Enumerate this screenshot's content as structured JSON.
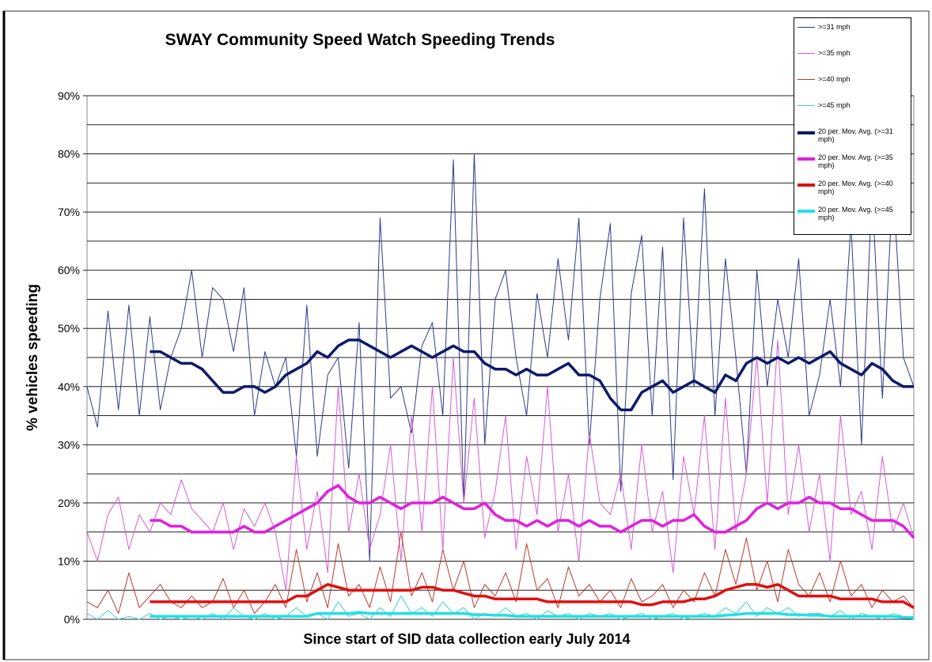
{
  "chart_data": {
    "type": "line",
    "title": "SWAY Community Speed Watch Speeding Trends",
    "ylabel": "% vehicles speeding",
    "xlabel": "Since start of SID data collection early July 2014",
    "ylim": [
      0,
      90
    ],
    "yticks": [
      {
        "value": 0,
        "label": "0%"
      },
      {
        "value": 10,
        "label": "10%"
      },
      {
        "value": 20,
        "label": "20%"
      },
      {
        "value": 30,
        "label": "30%"
      },
      {
        "value": 40,
        "label": "40%"
      },
      {
        "value": 50,
        "label": "50%"
      },
      {
        "value": 60,
        "label": "60%"
      },
      {
        "value": 70,
        "label": "70%"
      },
      {
        "value": 80,
        "label": "80%"
      },
      {
        "value": 90,
        "label": "90%"
      }
    ],
    "minor_grid": [
      5,
      15,
      25,
      35,
      45,
      55,
      65,
      75,
      85
    ],
    "grid": true,
    "legend": "top-right",
    "series": [
      {
        "name": ">=31 mph",
        "color": "#2e3a8c",
        "line_width": 1,
        "values": [
          40,
          33,
          53,
          36,
          54,
          35,
          52,
          36,
          45,
          50,
          60,
          45,
          57,
          55,
          46,
          57,
          35,
          46,
          40,
          45,
          28,
          54,
          28,
          42,
          45,
          26,
          51,
          10,
          69,
          38,
          40,
          32,
          47,
          51,
          35,
          79,
          20,
          80,
          30,
          55,
          60,
          45,
          35,
          56,
          45,
          62,
          48,
          69,
          30,
          55,
          68,
          22,
          56,
          66,
          35,
          64,
          24,
          69,
          40,
          74,
          35,
          62,
          45,
          25,
          60,
          40,
          55,
          45,
          62,
          35,
          42,
          55,
          40,
          68,
          30,
          74,
          38,
          75,
          45,
          40
        ]
      },
      {
        "name": ">=35 mph",
        "color": "#d65cd6",
        "line_width": 1,
        "values": [
          15,
          10,
          18,
          21,
          12,
          18,
          15,
          20,
          18,
          24,
          19,
          17,
          15,
          20,
          12,
          19,
          16,
          20,
          15,
          5,
          28,
          12,
          22,
          8,
          40,
          15,
          25,
          12,
          18,
          30,
          10,
          35,
          15,
          40,
          12,
          45,
          20,
          38,
          14,
          22,
          35,
          12,
          28,
          18,
          40,
          15,
          25,
          10,
          32,
          20,
          18,
          25,
          12,
          30,
          15,
          22,
          8,
          28,
          18,
          35,
          12,
          38,
          15,
          25,
          45,
          20,
          48,
          18,
          30,
          15,
          25,
          10,
          35,
          18,
          22,
          12,
          28,
          15,
          20,
          14
        ]
      },
      {
        "name": ">=40 mph",
        "color": "#c0392b",
        "line_width": 1,
        "values": [
          3,
          2,
          5,
          1,
          8,
          2,
          4,
          6,
          3,
          2,
          4,
          2,
          3,
          7,
          2,
          5,
          1,
          3,
          6,
          2,
          12,
          3,
          8,
          2,
          13,
          4,
          6,
          2,
          9,
          3,
          15,
          4,
          8,
          3,
          12,
          5,
          10,
          2,
          6,
          4,
          8,
          3,
          13,
          5,
          7,
          2,
          9,
          4,
          6,
          3,
          5,
          2,
          7,
          3,
          4,
          6,
          2,
          5,
          3,
          8,
          4,
          12,
          6,
          14,
          5,
          10,
          3,
          12,
          6,
          4,
          8,
          3,
          10,
          4,
          6,
          2,
          5,
          3,
          4,
          2
        ]
      },
      {
        "name": ">=45 mph",
        "color": "#40d0d0",
        "line_width": 1,
        "values": [
          1,
          0,
          1.5,
          0,
          0.5,
          0,
          1,
          0,
          0.5,
          0,
          0.5,
          0,
          1,
          0,
          2,
          0.5,
          0,
          1,
          0,
          0.5,
          2,
          0.5,
          1,
          0,
          3,
          0.5,
          1,
          0,
          2,
          0.5,
          4,
          1,
          2,
          0.5,
          3,
          1,
          2,
          0,
          1,
          0.5,
          2,
          0.5,
          1,
          0,
          1.5,
          0.5,
          1,
          0,
          1,
          0.5,
          1,
          0,
          0.5,
          1,
          0,
          0.5,
          1,
          0,
          0.5,
          1,
          0.5,
          2,
          1,
          3,
          0.5,
          2,
          1,
          2,
          0.5,
          1,
          1,
          0.5,
          1.5,
          0,
          1,
          0.5,
          0,
          1,
          0.5,
          0
        ]
      },
      {
        "name": "20 per. Mov. Avg. (>=31 mph)",
        "color": "#0d1a6b",
        "line_width": 3.5,
        "values": [
          null,
          null,
          null,
          null,
          null,
          null,
          46,
          46,
          45,
          44,
          44,
          43,
          41,
          39,
          39,
          40,
          40,
          39,
          40,
          42,
          43,
          44,
          46,
          45,
          47,
          48,
          48,
          47,
          46,
          45,
          46,
          47,
          46,
          45,
          46,
          47,
          46,
          46,
          44,
          43,
          43,
          42,
          43,
          42,
          42,
          43,
          44,
          42,
          42,
          41,
          38,
          36,
          36,
          39,
          40,
          41,
          39,
          40,
          41,
          40,
          39,
          42,
          41,
          44,
          45,
          44,
          45,
          44,
          45,
          44,
          45,
          46,
          44,
          43,
          42,
          44,
          43,
          41,
          40,
          40
        ]
      },
      {
        "name": "20 per. Mov. Avg. (>=35 mph)",
        "color": "#e020e0",
        "line_width": 3.5,
        "values": [
          null,
          null,
          null,
          null,
          null,
          null,
          17,
          17,
          16,
          16,
          15,
          15,
          15,
          15,
          15,
          16,
          15,
          15,
          16,
          17,
          18,
          19,
          20,
          22,
          23,
          21,
          20,
          20,
          21,
          20,
          19,
          20,
          20,
          20,
          21,
          20,
          19,
          19,
          20,
          18,
          17,
          17,
          16,
          17,
          16,
          17,
          17,
          16,
          17,
          16,
          16,
          15,
          16,
          17,
          17,
          16,
          17,
          17,
          18,
          16,
          15,
          15,
          16,
          17,
          19,
          20,
          19,
          20,
          20,
          21,
          20,
          20,
          19,
          19,
          18,
          17,
          17,
          17,
          16,
          14
        ]
      },
      {
        "name": "20 per. Mov. Avg. (>=40 mph)",
        "color": "#e01010",
        "line_width": 3.5,
        "values": [
          null,
          null,
          null,
          null,
          null,
          null,
          3,
          3,
          3,
          3,
          3,
          3,
          3,
          3,
          3,
          3,
          3,
          3,
          3,
          3,
          4,
          4,
          5,
          6,
          5.5,
          5,
          5,
          5,
          5,
          5,
          5,
          5,
          5.5,
          5.5,
          5,
          5,
          4.5,
          4,
          4,
          3.5,
          3.5,
          3.5,
          3.5,
          3.5,
          3,
          3,
          3,
          3,
          3,
          3,
          3,
          3,
          3,
          2.5,
          2.5,
          3,
          3,
          3,
          3.5,
          3.5,
          4,
          5,
          5.5,
          6,
          6,
          5.5,
          6,
          5,
          4,
          4,
          4,
          4,
          3.5,
          3.5,
          3.5,
          3.5,
          3,
          3,
          3,
          2
        ]
      },
      {
        "name": "20 per. Mov. Avg. (>=45 mph)",
        "color": "#20e0e8",
        "line_width": 3.5,
        "values": [
          null,
          null,
          null,
          null,
          null,
          null,
          0.5,
          0.5,
          0.5,
          0.5,
          0.5,
          0.5,
          0.5,
          0.5,
          0.5,
          0.5,
          0.5,
          0.5,
          0.5,
          0.5,
          0.5,
          0.5,
          1,
          1,
          1,
          1,
          1.2,
          1,
          1,
          1,
          1,
          1,
          1,
          1,
          1,
          1,
          1,
          0.8,
          0.8,
          0.7,
          0.7,
          0.5,
          0.5,
          0.5,
          0.5,
          0.5,
          0.5,
          0.5,
          0.5,
          0.5,
          0.5,
          0.5,
          0.5,
          0.5,
          0.5,
          0.5,
          0.5,
          0.5,
          0.5,
          0.5,
          0.5,
          0.7,
          0.8,
          1,
          1,
          1,
          1,
          0.8,
          0.8,
          0.7,
          0.7,
          0.5,
          0.5,
          0.5,
          0.5,
          0.5,
          0.5,
          0.5,
          0.3,
          0.3
        ]
      }
    ]
  }
}
